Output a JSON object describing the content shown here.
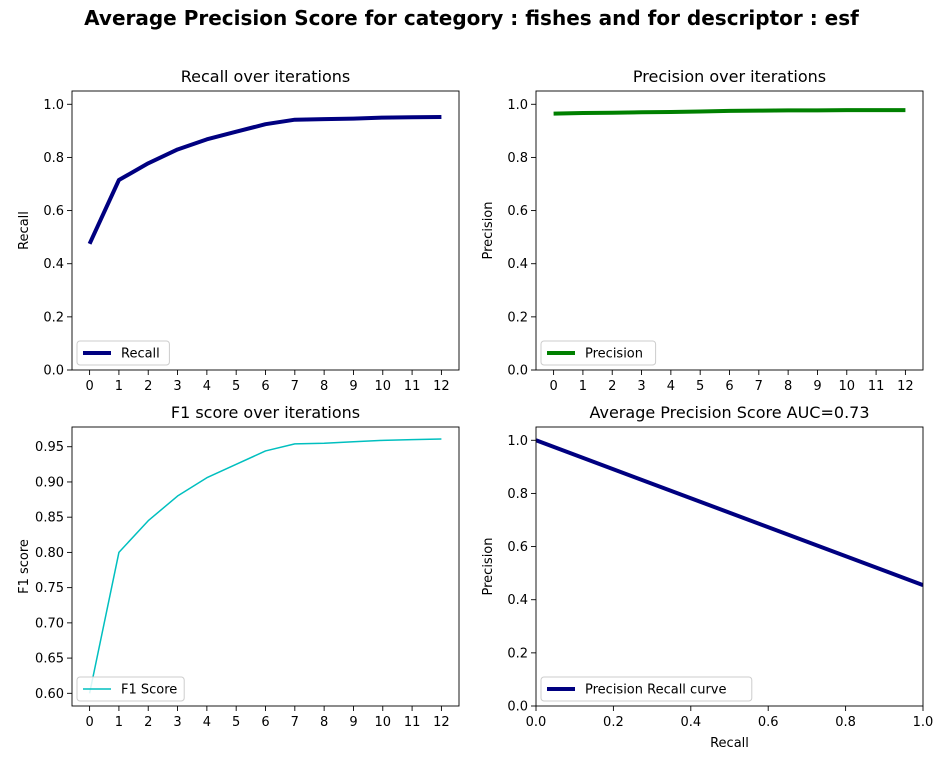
{
  "figure": {
    "title": "Average Precision Score for category : fishes and for descriptor : esf"
  },
  "chart_data": [
    {
      "type": "line",
      "title": "Recall over iterations",
      "xlabel": "",
      "ylabel": "Recall",
      "x": [
        0,
        1,
        2,
        3,
        4,
        5,
        6,
        7,
        8,
        9,
        10,
        11,
        12
      ],
      "xticks": [
        0,
        1,
        2,
        3,
        4,
        5,
        6,
        7,
        8,
        9,
        10,
        11,
        12
      ],
      "yticks": [
        0.0,
        0.2,
        0.4,
        0.6,
        0.8,
        1.0
      ],
      "xlim": [
        -0.6,
        12.6
      ],
      "ylim": [
        0.0,
        1.05
      ],
      "legend": "lower-left",
      "grid": false,
      "series": [
        {
          "name": "Recall",
          "color": "#000080",
          "width": 4,
          "values": [
            0.475,
            0.715,
            0.778,
            0.83,
            0.868,
            0.897,
            0.925,
            0.942,
            0.944,
            0.946,
            0.95,
            0.951,
            0.952
          ]
        }
      ]
    },
    {
      "type": "line",
      "title": "Precision over iterations",
      "xlabel": "",
      "ylabel": "Precision",
      "x": [
        0,
        1,
        2,
        3,
        4,
        5,
        6,
        7,
        8,
        9,
        10,
        11,
        12
      ],
      "xticks": [
        0,
        1,
        2,
        3,
        4,
        5,
        6,
        7,
        8,
        9,
        10,
        11,
        12
      ],
      "yticks": [
        0.0,
        0.2,
        0.4,
        0.6,
        0.8,
        1.0
      ],
      "xlim": [
        -0.6,
        12.6
      ],
      "ylim": [
        0.0,
        1.05
      ],
      "legend": "lower-left",
      "grid": false,
      "series": [
        {
          "name": "Precision",
          "color": "#008000",
          "width": 4,
          "values": [
            0.965,
            0.967,
            0.968,
            0.97,
            0.971,
            0.973,
            0.975,
            0.976,
            0.977,
            0.977,
            0.978,
            0.978,
            0.978
          ]
        }
      ]
    },
    {
      "type": "line",
      "title": "F1 score over iterations",
      "xlabel": "",
      "ylabel": "F1 score",
      "x": [
        0,
        1,
        2,
        3,
        4,
        5,
        6,
        7,
        8,
        9,
        10,
        11,
        12
      ],
      "xticks": [
        0,
        1,
        2,
        3,
        4,
        5,
        6,
        7,
        8,
        9,
        10,
        11,
        12
      ],
      "yticks": [
        0.6,
        0.65,
        0.7,
        0.75,
        0.8,
        0.85,
        0.9,
        0.95
      ],
      "ytick_labels": [
        "0.60",
        "0.65",
        "0.70",
        "0.75",
        "0.80",
        "0.85",
        "0.90",
        "0.95"
      ],
      "xlim": [
        -0.6,
        12.6
      ],
      "ylim": [
        0.582,
        0.978
      ],
      "legend": "lower-left",
      "grid": false,
      "series": [
        {
          "name": "F1 Score",
          "color": "#00bfbf",
          "width": 1.5,
          "values": [
            0.6,
            0.8,
            0.845,
            0.88,
            0.906,
            0.925,
            0.944,
            0.954,
            0.955,
            0.957,
            0.959,
            0.96,
            0.961
          ]
        }
      ]
    },
    {
      "type": "line",
      "title": "Average Precision Score AUC=0.73",
      "xlabel": "Recall",
      "ylabel": "Precision",
      "x": [
        0.0,
        1.0
      ],
      "xticks": [
        0.0,
        0.2,
        0.4,
        0.6,
        0.8,
        1.0
      ],
      "yticks": [
        0.0,
        0.2,
        0.4,
        0.6,
        0.8,
        1.0
      ],
      "xlim": [
        0.0,
        1.0
      ],
      "ylim": [
        0.0,
        1.05
      ],
      "legend": "lower-left",
      "grid": false,
      "series": [
        {
          "name": "Precision Recall curve",
          "color": "#000080",
          "width": 4,
          "values": [
            1.0,
            0.455
          ]
        }
      ]
    }
  ]
}
